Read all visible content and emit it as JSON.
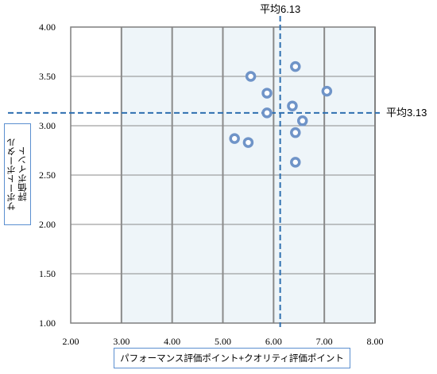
{
  "chart_data": {
    "type": "scatter",
    "xlabel": "パフォーマンス評価ポイント+クオリティ評価ポイント",
    "ylabel": "サポートポータル\n評価ポイント",
    "xlim": [
      2.0,
      8.0
    ],
    "ylim": [
      1.0,
      4.0
    ],
    "x_ticks": [
      "2.00",
      "3.00",
      "4.00",
      "5.00",
      "6.00",
      "7.00",
      "8.00"
    ],
    "y_ticks": [
      "1.00",
      "1.50",
      "2.00",
      "2.50",
      "3.00",
      "3.50",
      "4.00"
    ],
    "grid": true,
    "shaded_region": {
      "x": [
        3.0,
        8.0
      ],
      "y": [
        1.0,
        4.0
      ]
    },
    "points": [
      {
        "x": 5.55,
        "y": 3.5
      },
      {
        "x": 5.87,
        "y": 3.33
      },
      {
        "x": 5.87,
        "y": 3.13
      },
      {
        "x": 5.23,
        "y": 2.87
      },
      {
        "x": 5.5,
        "y": 2.83
      },
      {
        "x": 6.43,
        "y": 3.6
      },
      {
        "x": 6.37,
        "y": 3.2
      },
      {
        "x": 6.57,
        "y": 3.05
      },
      {
        "x": 6.43,
        "y": 2.93
      },
      {
        "x": 6.43,
        "y": 2.63
      },
      {
        "x": 7.05,
        "y": 3.35
      }
    ],
    "reference_lines": [
      {
        "axis": "x",
        "value": 6.13,
        "label": "平均6.13"
      },
      {
        "axis": "y",
        "value": 3.13,
        "label": "平均3.13"
      }
    ],
    "colors": {
      "marker_stroke": "#6f94c8",
      "reference_line": "#2e6fb0",
      "shade_fill": "#eef5f9",
      "grid": "#8a8a8a"
    }
  }
}
